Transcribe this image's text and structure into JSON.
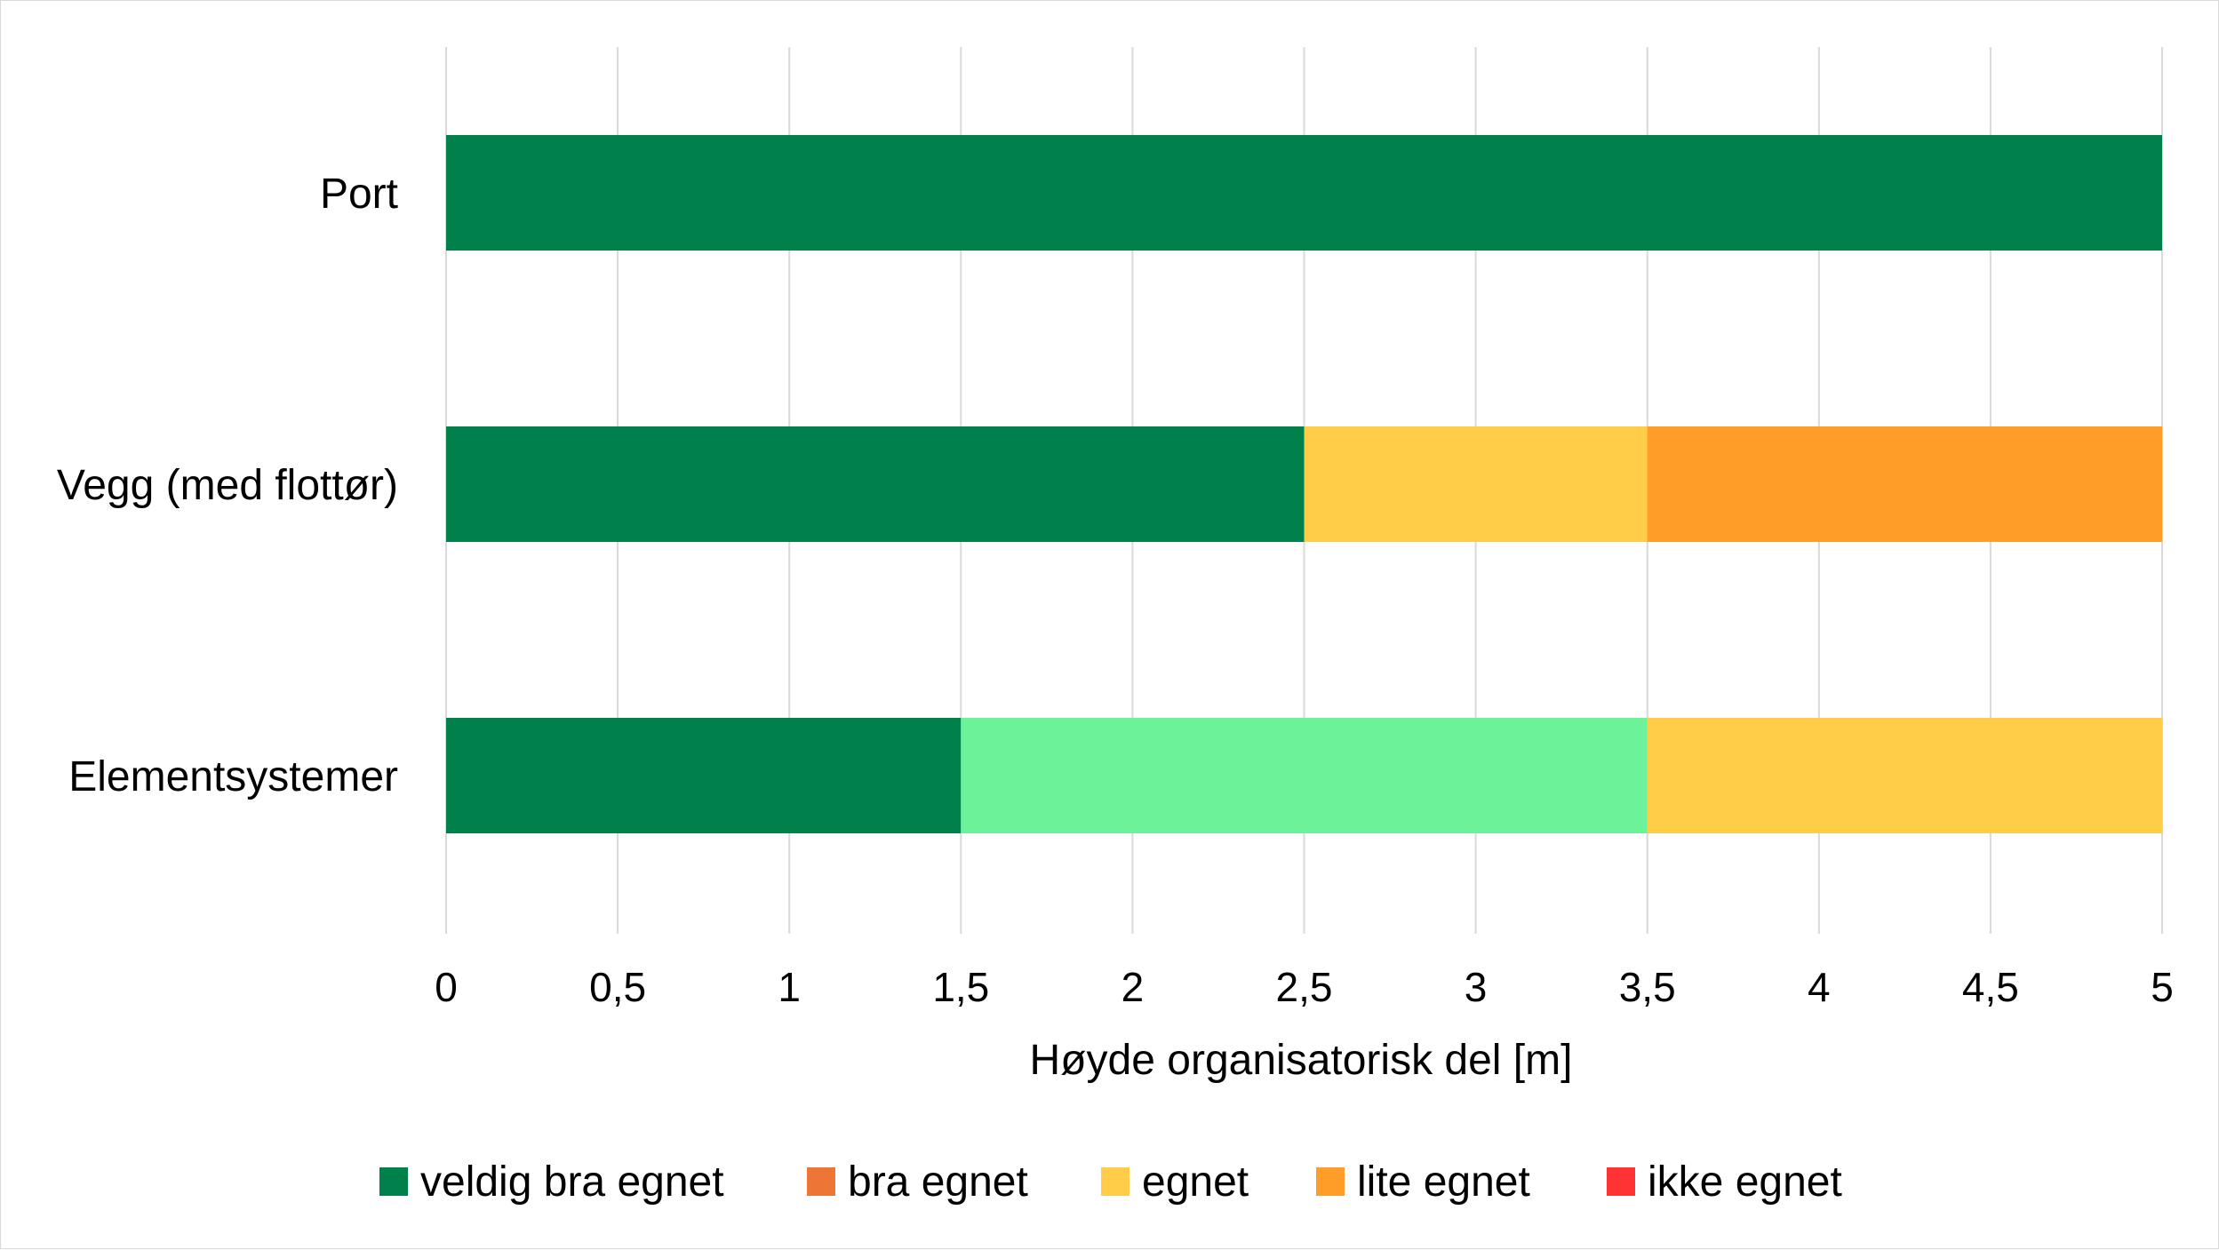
{
  "chart_data": {
    "type": "bar",
    "orientation": "horizontal",
    "stacked": true,
    "categories": [
      "Port",
      "Vegg (med flottør)",
      "Elementsystemer"
    ],
    "xlabel": "Høyde organisatorisk del [m]",
    "ylabel": "",
    "xlim": [
      0,
      5
    ],
    "xticks": [
      0,
      0.5,
      1,
      1.5,
      2,
      2.5,
      3,
      3.5,
      4,
      4.5,
      5
    ],
    "xtick_labels": [
      "0",
      "0,5",
      "1",
      "1,5",
      "2",
      "2,5",
      "3",
      "3,5",
      "4",
      "4,5",
      "5"
    ],
    "grid": "vertical",
    "legend_position": "bottom",
    "legend": [
      {
        "name": "veldig bra egnet",
        "color": "#00804a"
      },
      {
        "name": "bra egnet",
        "color": "#ed7535"
      },
      {
        "name": "egnet",
        "color": "#ffcd47"
      },
      {
        "name": "lite egnet",
        "color": "#ff9d28"
      },
      {
        "name": "ikke egnet",
        "color": "#ff3333"
      }
    ],
    "bars": [
      {
        "category": "Port",
        "segments": [
          {
            "from": 0,
            "to": 5,
            "color": "#00804a"
          }
        ]
      },
      {
        "category": "Vegg (med flottør)",
        "segments": [
          {
            "from": 0,
            "to": 2.5,
            "color": "#00804a"
          },
          {
            "from": 2.5,
            "to": 3.5,
            "color": "#ffcd47"
          },
          {
            "from": 3.5,
            "to": 5,
            "color": "#ff9d28"
          }
        ]
      },
      {
        "category": "Elementsystemer",
        "segments": [
          {
            "from": 0,
            "to": 1.5,
            "color": "#00804a"
          },
          {
            "from": 1.5,
            "to": 3.5,
            "color": "#6cf298"
          },
          {
            "from": 3.5,
            "to": 5,
            "color": "#ffcd47"
          }
        ]
      }
    ]
  }
}
